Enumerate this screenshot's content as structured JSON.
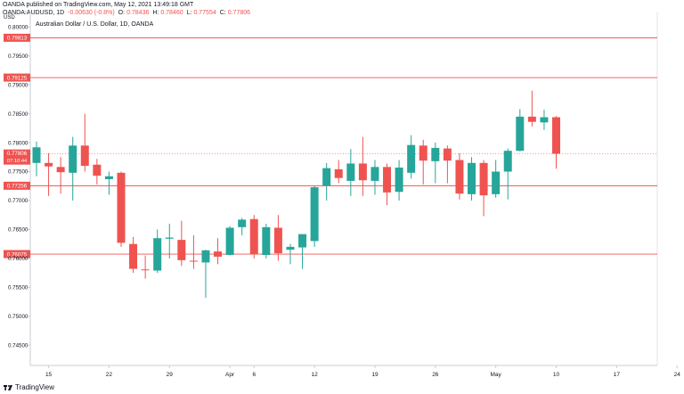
{
  "header": {
    "published_line": "OANDA published on TradingView.com, May 12, 2021 13:49:18 GMT",
    "symbol": "OANDA:AUDUSD, 1D",
    "change": "-0.00630 (-0.8%)",
    "o_label": "O:",
    "o_value": "0.78436",
    "h_label": "H:",
    "h_value": "0.78460",
    "l_label": "L:",
    "l_value": "0.77554",
    "c_label": "C:",
    "c_value": "0.77806"
  },
  "chart_title": "Australian Dollar / U.S. Dollar, 1D, OANDA",
  "footer": {
    "brand": "TradingView"
  },
  "colors": {
    "up": "#26a69a",
    "down": "#ef5350",
    "hline": "#ef5350"
  },
  "chart_data": {
    "type": "candlestick",
    "y_axis_unit": "USD",
    "ylim": [
      0.7415,
      0.8025
    ],
    "y_ticks": [
      0.745,
      0.75,
      0.755,
      0.76,
      0.765,
      0.77,
      0.775,
      0.78,
      0.785,
      0.79,
      0.795,
      0.8
    ],
    "y_tick_labels": [
      "0.74500",
      "0.75000",
      "0.75500",
      "0.76000",
      "0.76500",
      "0.77000",
      "0.77500",
      "0.78000",
      "0.78500",
      "0.79000",
      "0.79500",
      "0.80000"
    ],
    "x_labels": [
      {
        "label": "15",
        "idx": 1
      },
      {
        "label": "22",
        "idx": 6
      },
      {
        "label": "29",
        "idx": 11
      },
      {
        "label": "Apr",
        "idx": 16
      },
      {
        "label": "6",
        "idx": 18
      },
      {
        "label": "12",
        "idx": 23
      },
      {
        "label": "19",
        "idx": 28
      },
      {
        "label": "26",
        "idx": 33
      },
      {
        "label": "May",
        "idx": 38
      },
      {
        "label": "10",
        "idx": 43
      },
      {
        "label": "17",
        "idx": 48
      },
      {
        "label": "24",
        "idx": 53
      }
    ],
    "horizontal_lines": [
      {
        "value": 0.79813,
        "label": "0.79813"
      },
      {
        "value": 0.79125,
        "label": "0.79125"
      },
      {
        "value": 0.77256,
        "label": "0.77256"
      },
      {
        "value": 0.76075,
        "label": "0.76075"
      }
    ],
    "last_price": {
      "value": 0.77806,
      "label": "0.77806",
      "countdown": "07:10:44"
    },
    "candles": [
      {
        "o": 0.7765,
        "h": 0.7802,
        "l": 0.7742,
        "c": 0.7792
      },
      {
        "o": 0.7765,
        "h": 0.7782,
        "l": 0.7708,
        "c": 0.7759
      },
      {
        "o": 0.7758,
        "h": 0.7775,
        "l": 0.7712,
        "c": 0.7749
      },
      {
        "o": 0.7748,
        "h": 0.781,
        "l": 0.77,
        "c": 0.7795
      },
      {
        "o": 0.7795,
        "h": 0.785,
        "l": 0.775,
        "c": 0.776
      },
      {
        "o": 0.7762,
        "h": 0.7772,
        "l": 0.7728,
        "c": 0.7743
      },
      {
        "o": 0.7737,
        "h": 0.775,
        "l": 0.771,
        "c": 0.7742
      },
      {
        "o": 0.7748,
        "h": 0.775,
        "l": 0.762,
        "c": 0.7627
      },
      {
        "o": 0.7625,
        "h": 0.7637,
        "l": 0.7575,
        "c": 0.7582
      },
      {
        "o": 0.7581,
        "h": 0.7605,
        "l": 0.7565,
        "c": 0.758
      },
      {
        "o": 0.7579,
        "h": 0.765,
        "l": 0.7575,
        "c": 0.7635
      },
      {
        "o": 0.7634,
        "h": 0.766,
        "l": 0.76,
        "c": 0.7636
      },
      {
        "o": 0.7632,
        "h": 0.7665,
        "l": 0.7587,
        "c": 0.7597
      },
      {
        "o": 0.7596,
        "h": 0.764,
        "l": 0.7582,
        "c": 0.7595
      },
      {
        "o": 0.7593,
        "h": 0.7615,
        "l": 0.7532,
        "c": 0.7614
      },
      {
        "o": 0.7612,
        "h": 0.7635,
        "l": 0.759,
        "c": 0.7603
      },
      {
        "o": 0.7606,
        "h": 0.7656,
        "l": 0.7605,
        "c": 0.7653
      },
      {
        "o": 0.7654,
        "h": 0.767,
        "l": 0.764,
        "c": 0.7667
      },
      {
        "o": 0.7668,
        "h": 0.7675,
        "l": 0.76,
        "c": 0.7607
      },
      {
        "o": 0.7606,
        "h": 0.766,
        "l": 0.76,
        "c": 0.7654
      },
      {
        "o": 0.7653,
        "h": 0.7675,
        "l": 0.7596,
        "c": 0.7609
      },
      {
        "o": 0.7615,
        "h": 0.7625,
        "l": 0.759,
        "c": 0.762
      },
      {
        "o": 0.7619,
        "h": 0.764,
        "l": 0.7582,
        "c": 0.7642
      },
      {
        "o": 0.763,
        "h": 0.7725,
        "l": 0.762,
        "c": 0.7723
      },
      {
        "o": 0.7726,
        "h": 0.7765,
        "l": 0.77,
        "c": 0.7756
      },
      {
        "o": 0.7754,
        "h": 0.777,
        "l": 0.773,
        "c": 0.7739
      },
      {
        "o": 0.7734,
        "h": 0.7789,
        "l": 0.7708,
        "c": 0.7764
      },
      {
        "o": 0.7764,
        "h": 0.781,
        "l": 0.7708,
        "c": 0.7735
      },
      {
        "o": 0.7734,
        "h": 0.777,
        "l": 0.771,
        "c": 0.7758
      },
      {
        "o": 0.7758,
        "h": 0.7764,
        "l": 0.7692,
        "c": 0.7714
      },
      {
        "o": 0.7715,
        "h": 0.777,
        "l": 0.77,
        "c": 0.7757
      },
      {
        "o": 0.7748,
        "h": 0.7813,
        "l": 0.7738,
        "c": 0.7796
      },
      {
        "o": 0.7795,
        "h": 0.7805,
        "l": 0.7728,
        "c": 0.7769
      },
      {
        "o": 0.7768,
        "h": 0.78,
        "l": 0.773,
        "c": 0.7791
      },
      {
        "o": 0.779,
        "h": 0.7795,
        "l": 0.773,
        "c": 0.7769
      },
      {
        "o": 0.777,
        "h": 0.7782,
        "l": 0.7702,
        "c": 0.7712
      },
      {
        "o": 0.7711,
        "h": 0.7775,
        "l": 0.77,
        "c": 0.7765
      },
      {
        "o": 0.7765,
        "h": 0.777,
        "l": 0.7673,
        "c": 0.7709
      },
      {
        "o": 0.7711,
        "h": 0.777,
        "l": 0.7705,
        "c": 0.775
      },
      {
        "o": 0.775,
        "h": 0.779,
        "l": 0.7702,
        "c": 0.7786
      },
      {
        "o": 0.7786,
        "h": 0.7858,
        "l": 0.7785,
        "c": 0.7845
      },
      {
        "o": 0.7845,
        "h": 0.789,
        "l": 0.7828,
        "c": 0.7836
      },
      {
        "o": 0.7835,
        "h": 0.7857,
        "l": 0.7822,
        "c": 0.7844
      },
      {
        "o": 0.7844,
        "h": 0.7846,
        "l": 0.7755,
        "c": 0.7781
      }
    ]
  }
}
